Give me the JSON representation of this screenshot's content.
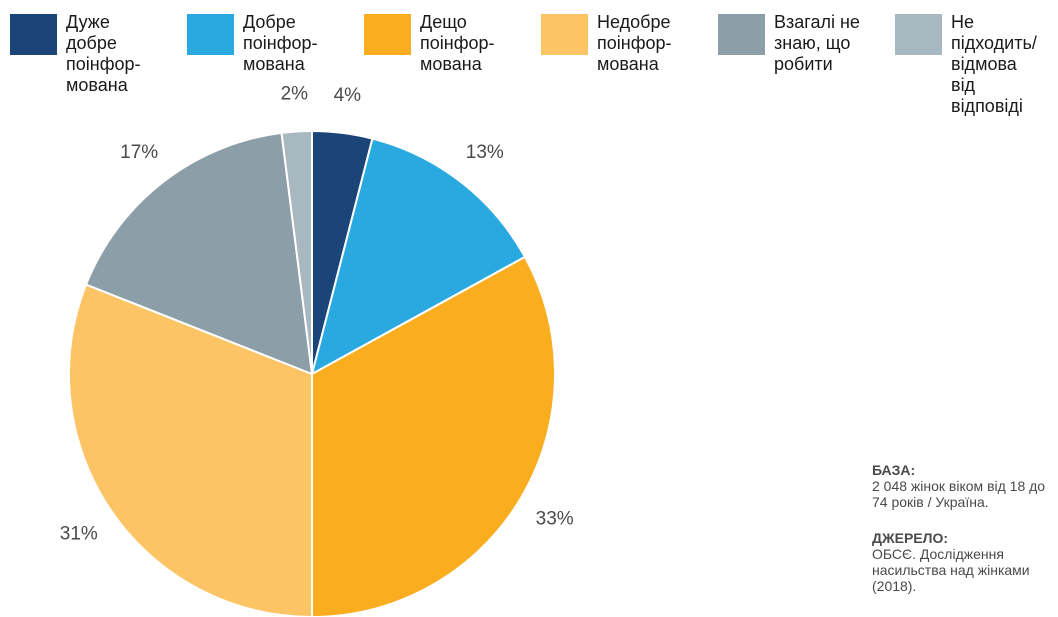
{
  "chart_data": {
    "type": "pie",
    "title": "",
    "start_angle_deg": 0,
    "direction": "clockwise",
    "slices": [
      {
        "label": "Дуже\nдобре\nпоінфор-\nмована",
        "value": 4,
        "display": "4%",
        "color": "#1b4479"
      },
      {
        "label": "Добре\nпоінфор-\nмована",
        "value": 13,
        "display": "13%",
        "color": "#2aa9e1"
      },
      {
        "label": "Дещо\nпоінфор-\nмована",
        "value": 33,
        "display": "33%",
        "color": "#f9ad1f"
      },
      {
        "label": "Недобре\nпоінфор-\nмована",
        "value": 31,
        "display": "31%",
        "color": "#fdc466"
      },
      {
        "label": "Взагалі не\nзнаю, що\nробити",
        "value": 17,
        "display": "17%",
        "color": "#8c9ea7"
      },
      {
        "label": "Не\nпідходить/\nвідмова\nвід\nвідповіді",
        "value": 2,
        "display": "2%",
        "color": "#a8b8c0"
      }
    ]
  },
  "notes": {
    "base_heading": "БАЗА:",
    "base_text": "2 048 жінок віком від 18 до 74 років / Україна.",
    "source_heading": "ДЖЕРЕЛО:",
    "source_text": "ОБСЄ. Дослідження насильства над жінками (2018)."
  }
}
